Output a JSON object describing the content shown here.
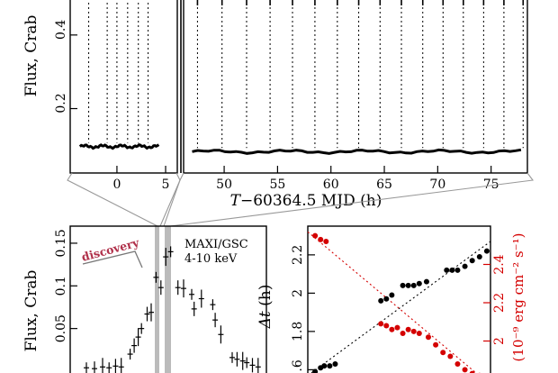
{
  "chart_data": [
    {
      "type": "scatter",
      "ylabel": "Flux, Crab",
      "xlabel": "T-60364.5 MJD (h)",
      "xlabel_parts": [
        "T",
        "−60364.5 MJD (h)"
      ],
      "left_panel": {
        "xlim": [
          -4.8,
          6.2
        ],
        "xticks": [
          0,
          5
        ],
        "xtick_labels": [
          "0",
          "5"
        ],
        "ylim": [
          0.025,
          0.5
        ],
        "yticks": [
          0.2,
          0.4
        ],
        "ytick_labels": [
          "0.2",
          "0.4"
        ],
        "burst_times": [
          -2.9,
          -1.0,
          0.0,
          1.1,
          2.2,
          3.2
        ],
        "persistent": {
          "x_range": [
            -3.8,
            4.3
          ],
          "y": 0.097
        }
      },
      "right_panel": {
        "xlim": [
          46.2,
          78.4
        ],
        "xticks": [
          50,
          55,
          60,
          65,
          70,
          75
        ],
        "xtick_labels": [
          "50",
          "55",
          "60",
          "65",
          "70",
          "75"
        ],
        "ylim": [
          0.025,
          0.5
        ],
        "burst_times": [
          47.5,
          49.8,
          52.1,
          54.3,
          56.4,
          58.5,
          60.6,
          62.6,
          64.6,
          66.6,
          68.6,
          70.5,
          72.4,
          74.3,
          76.2,
          78.0
        ],
        "persistent": {
          "x_range": [
            47.0,
            77.8
          ],
          "y": 0.083
        }
      }
    },
    {
      "type": "scatter",
      "ylabel": "Flux, Crab",
      "annotation": "discovery",
      "instrument": "MAXI/GSC",
      "band": "4-10 keV",
      "ylim": [
        0.0,
        0.17
      ],
      "yticks": [
        0.05,
        0.1,
        0.15
      ],
      "ytick_labels": [
        "0.05",
        "0.1",
        "0.15"
      ],
      "points": [
        {
          "x": 2.0,
          "y": 0.004
        },
        {
          "x": 3.0,
          "y": 0.003
        },
        {
          "x": 4.0,
          "y": 0.005
        },
        {
          "x": 4.8,
          "y": 0.004
        },
        {
          "x": 5.6,
          "y": 0.006
        },
        {
          "x": 6.3,
          "y": 0.005
        },
        {
          "x": 7.4,
          "y": 0.02
        },
        {
          "x": 7.9,
          "y": 0.03
        },
        {
          "x": 8.4,
          "y": 0.04
        },
        {
          "x": 8.8,
          "y": 0.05
        },
        {
          "x": 9.5,
          "y": 0.067
        },
        {
          "x": 10.0,
          "y": 0.069
        },
        {
          "x": 10.6,
          "y": 0.11
        },
        {
          "x": 11.2,
          "y": 0.098
        },
        {
          "x": 11.8,
          "y": 0.134
        },
        {
          "x": 12.4,
          "y": 0.14
        },
        {
          "x": 13.3,
          "y": 0.098
        },
        {
          "x": 14.0,
          "y": 0.097
        },
        {
          "x": 15.0,
          "y": 0.09
        },
        {
          "x": 15.3,
          "y": 0.073
        },
        {
          "x": 16.2,
          "y": 0.085
        },
        {
          "x": 17.6,
          "y": 0.078
        },
        {
          "x": 17.9,
          "y": 0.06
        },
        {
          "x": 18.6,
          "y": 0.043
        },
        {
          "x": 20.0,
          "y": 0.016
        },
        {
          "x": 20.6,
          "y": 0.014
        },
        {
          "x": 21.3,
          "y": 0.012
        },
        {
          "x": 21.8,
          "y": 0.01
        },
        {
          "x": 22.5,
          "y": 0.007
        },
        {
          "x": 23.2,
          "y": 0.005
        }
      ]
    },
    {
      "type": "scatter",
      "ylabel": "Δt (h)",
      "ylabel_parts": [
        "Δt",
        " (h)"
      ],
      "ylabel_right": "(10⁻⁹ erg cm⁻² s⁻¹)",
      "ylim_left": [
        1.55,
        2.35
      ],
      "yticks_left": [
        1.6,
        1.8,
        2,
        2.2
      ],
      "ytick_labels_left": [
        "1.6",
        "1.8",
        "2",
        "2.2"
      ],
      "ylim_right": [
        1.8,
        2.6
      ],
      "yticks_right": [
        2,
        2.2,
        2.4
      ],
      "ytick_labels_right": [
        "2",
        "2.2",
        "2.4"
      ],
      "series": [
        {
          "color": "#000000",
          "axis": "left",
          "points": [
            {
              "x": 0.04,
              "y": 1.59
            },
            {
              "x": 0.07,
              "y": 1.61
            },
            {
              "x": 0.09,
              "y": 1.62
            },
            {
              "x": 0.12,
              "y": 1.62
            },
            {
              "x": 0.15,
              "y": 1.63
            },
            {
              "x": 0.4,
              "y": 1.96
            },
            {
              "x": 0.43,
              "y": 1.97
            },
            {
              "x": 0.46,
              "y": 1.99
            },
            {
              "x": 0.52,
              "y": 2.04
            },
            {
              "x": 0.55,
              "y": 2.04
            },
            {
              "x": 0.58,
              "y": 2.04
            },
            {
              "x": 0.61,
              "y": 2.05
            },
            {
              "x": 0.65,
              "y": 2.06
            },
            {
              "x": 0.76,
              "y": 2.12
            },
            {
              "x": 0.79,
              "y": 2.12
            },
            {
              "x": 0.82,
              "y": 2.12
            },
            {
              "x": 0.86,
              "y": 2.14
            },
            {
              "x": 0.9,
              "y": 2.17
            },
            {
              "x": 0.94,
              "y": 2.19
            },
            {
              "x": 0.98,
              "y": 2.22
            }
          ]
        },
        {
          "color": "#d40000",
          "axis": "right",
          "points": [
            {
              "x": 0.04,
              "y": 2.55
            },
            {
              "x": 0.07,
              "y": 2.53
            },
            {
              "x": 0.1,
              "y": 2.52
            },
            {
              "x": 0.4,
              "y": 2.09
            },
            {
              "x": 0.43,
              "y": 2.08
            },
            {
              "x": 0.46,
              "y": 2.06
            },
            {
              "x": 0.49,
              "y": 2.07
            },
            {
              "x": 0.52,
              "y": 2.04
            },
            {
              "x": 0.55,
              "y": 2.06
            },
            {
              "x": 0.58,
              "y": 2.05
            },
            {
              "x": 0.61,
              "y": 2.04
            },
            {
              "x": 0.66,
              "y": 2.02
            },
            {
              "x": 0.7,
              "y": 1.98
            },
            {
              "x": 0.74,
              "y": 1.94
            },
            {
              "x": 0.78,
              "y": 1.92
            },
            {
              "x": 0.82,
              "y": 1.88
            },
            {
              "x": 0.86,
              "y": 1.85
            },
            {
              "x": 0.9,
              "y": 1.83
            },
            {
              "x": 0.94,
              "y": 1.82
            },
            {
              "x": 0.98,
              "y": 1.8
            }
          ]
        }
      ]
    }
  ],
  "colors": {
    "axes": "#000000",
    "highlight_band": "#bbbbbb",
    "connector": "#999999",
    "red_series": "#d40000",
    "discovery": "#b0304a"
  }
}
